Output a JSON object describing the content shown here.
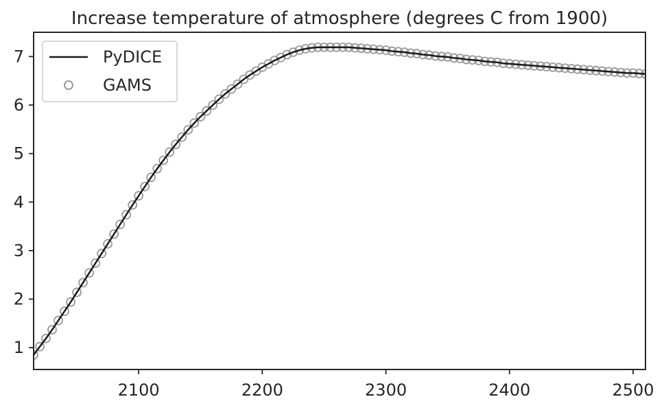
{
  "chart_data": {
    "type": "line",
    "title": "Increase temperature of atmosphere (degrees C from 1900)",
    "xlabel": "",
    "ylabel": "",
    "xlim": [
      2015,
      2510
    ],
    "ylim": [
      0.55,
      7.5
    ],
    "x_ticks": [
      2100,
      2200,
      2300,
      2400,
      2500
    ],
    "y_ticks": [
      1,
      2,
      3,
      4,
      5,
      6,
      7
    ],
    "grid": false,
    "legend_position": "top-left",
    "legend": [
      "PyDICE",
      "GAMS"
    ],
    "series": [
      {
        "name": "PyDICE",
        "style": "line",
        "color": "#1a1a1a",
        "x_start": 2015,
        "x_step": 5,
        "values": [
          0.85,
          1.02,
          1.19,
          1.37,
          1.56,
          1.75,
          1.94,
          2.14,
          2.34,
          2.54,
          2.74,
          2.94,
          3.14,
          3.34,
          3.54,
          3.74,
          3.94,
          4.13,
          4.32,
          4.51,
          4.69,
          4.86,
          5.03,
          5.19,
          5.34,
          5.49,
          5.63,
          5.76,
          5.88,
          6.0,
          6.12,
          6.23,
          6.33,
          6.43,
          6.53,
          6.62,
          6.7,
          6.78,
          6.85,
          6.92,
          6.98,
          7.04,
          7.09,
          7.13,
          7.16,
          7.18,
          7.19,
          7.19,
          7.19,
          7.19,
          7.19,
          7.19,
          7.18,
          7.17,
          7.16,
          7.15,
          7.14,
          7.13,
          7.11,
          7.1,
          7.09,
          7.07,
          7.06,
          7.04,
          7.03,
          7.01,
          7.0,
          6.99,
          6.97,
          6.96,
          6.94,
          6.93,
          6.92,
          6.9,
          6.89,
          6.88,
          6.86,
          6.85,
          6.84,
          6.83,
          6.82,
          6.81,
          6.8,
          6.79,
          6.78,
          6.77,
          6.76,
          6.75,
          6.74,
          6.73,
          6.72,
          6.71,
          6.7,
          6.69,
          6.68,
          6.67,
          6.66,
          6.66,
          6.65,
          6.64
        ]
      },
      {
        "name": "GAMS",
        "style": "markers",
        "color": "#999999",
        "x_start": 2015,
        "x_step": 5,
        "values": [
          0.85,
          1.02,
          1.19,
          1.37,
          1.56,
          1.75,
          1.94,
          2.14,
          2.34,
          2.54,
          2.74,
          2.94,
          3.14,
          3.34,
          3.54,
          3.74,
          3.94,
          4.13,
          4.32,
          4.51,
          4.69,
          4.86,
          5.03,
          5.19,
          5.34,
          5.49,
          5.63,
          5.76,
          5.88,
          6.0,
          6.12,
          6.23,
          6.33,
          6.43,
          6.53,
          6.62,
          6.7,
          6.78,
          6.85,
          6.92,
          6.98,
          7.04,
          7.09,
          7.13,
          7.16,
          7.18,
          7.19,
          7.19,
          7.19,
          7.19,
          7.19,
          7.19,
          7.18,
          7.17,
          7.16,
          7.15,
          7.14,
          7.13,
          7.11,
          7.1,
          7.09,
          7.07,
          7.06,
          7.04,
          7.03,
          7.01,
          7.0,
          6.99,
          6.97,
          6.96,
          6.94,
          6.93,
          6.92,
          6.9,
          6.89,
          6.88,
          6.86,
          6.85,
          6.84,
          6.83,
          6.82,
          6.81,
          6.8,
          6.79,
          6.78,
          6.77,
          6.76,
          6.75,
          6.74,
          6.73,
          6.72,
          6.71,
          6.7,
          6.69,
          6.68,
          6.67,
          6.66,
          6.66,
          6.65,
          6.64
        ]
      }
    ]
  }
}
